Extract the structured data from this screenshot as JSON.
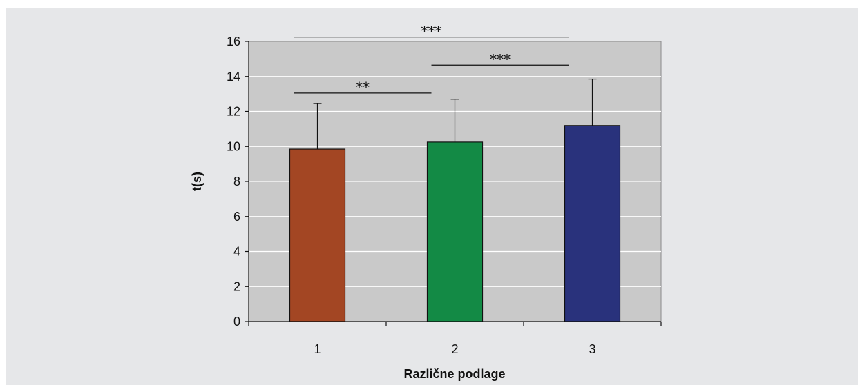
{
  "chart_data": {
    "type": "bar",
    "title": "",
    "xlabel": "Različne podlage",
    "ylabel": "t(s)",
    "categories": [
      "1",
      "2",
      "3"
    ],
    "values": [
      9.85,
      10.25,
      11.2
    ],
    "errors": [
      2.6,
      2.45,
      2.65
    ],
    "colors": [
      "#a34623",
      "#138a45",
      "#29327c"
    ],
    "ylim": [
      0,
      16
    ],
    "yticks": [
      "0",
      "2",
      "4",
      "6",
      "8",
      "10",
      "12",
      "14",
      "16"
    ],
    "ytick_values": [
      0,
      2,
      4,
      6,
      8,
      10,
      12,
      14,
      16
    ],
    "grid": true,
    "plot_background": "#c9c9c9",
    "significance": [
      {
        "from": "1",
        "to": "2",
        "label": "**",
        "y": 13.05
      },
      {
        "from": "2",
        "to": "3",
        "label": "***",
        "y": 14.65
      },
      {
        "from": "1",
        "to": "3",
        "label": "***",
        "y": 16.25
      }
    ]
  }
}
